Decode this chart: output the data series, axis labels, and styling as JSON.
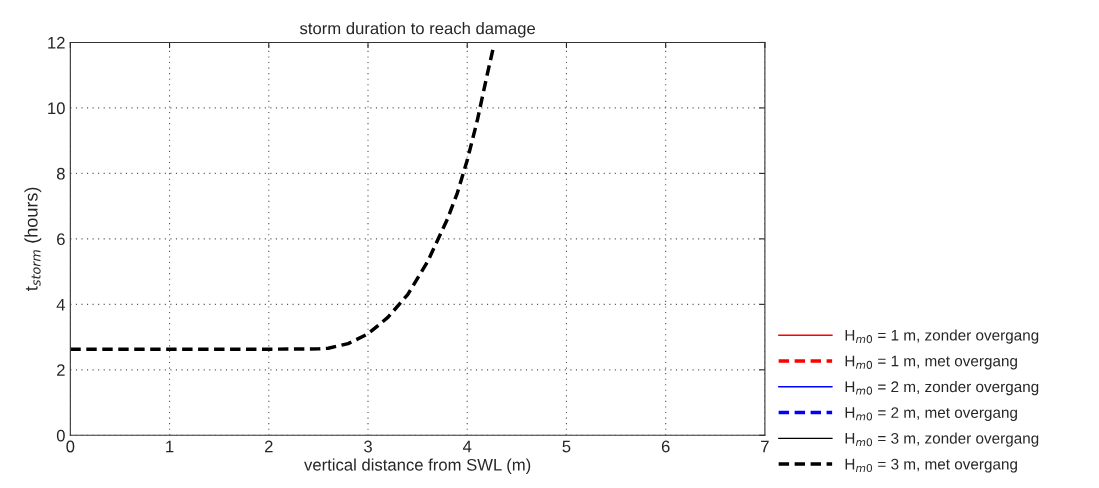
{
  "chart_data": {
    "type": "line",
    "title": "storm duration to reach damage",
    "xlabel": "vertical distance from SWL (m)",
    "ylabel": "t$_{storm}$ (hours)",
    "x": [
      0,
      0.5,
      1,
      1.5,
      2,
      2.5,
      2.6,
      2.8,
      3.0,
      3.2,
      3.4,
      3.6,
      3.8,
      3.9,
      4.0,
      4.1,
      4.2,
      4.26
    ],
    "series": [
      {
        "name": "H$_{m0}$ = 1 m, zonder overgang",
        "color": "#ff0000",
        "line_style": "solid",
        "values": [
          null,
          null,
          null,
          null,
          null,
          null,
          null,
          null,
          null,
          null,
          null,
          null,
          null,
          null,
          null,
          null,
          null,
          null
        ]
      },
      {
        "name": "H$_{m0}$ = 1 m, met overgang",
        "color": "#ff0000",
        "line_style": "dashed",
        "values": [
          null,
          null,
          null,
          null,
          null,
          null,
          null,
          null,
          null,
          null,
          null,
          null,
          null,
          null,
          null,
          null,
          null,
          null
        ]
      },
      {
        "name": "H$_{m0}$ = 2 m, zonder overgang",
        "color": "#0000ff",
        "line_style": "solid",
        "values": [
          null,
          null,
          null,
          null,
          null,
          null,
          null,
          null,
          null,
          null,
          null,
          null,
          null,
          null,
          null,
          null,
          null,
          null
        ]
      },
      {
        "name": "H$_{m0}$ = 2 m, met overgang",
        "color": "#0000ff",
        "line_style": "dashed",
        "values": [
          null,
          null,
          null,
          null,
          null,
          null,
          null,
          null,
          null,
          null,
          null,
          null,
          null,
          null,
          null,
          null,
          null,
          null
        ]
      },
      {
        "name": "H$_{m0}$ = 3 m, zonder overgang",
        "color": "#000000",
        "line_style": "solid",
        "values": [
          null,
          null,
          null,
          null,
          null,
          null,
          null,
          null,
          null,
          null,
          null,
          null,
          null,
          null,
          null,
          null,
          null,
          null
        ]
      },
      {
        "name": "H$_{m0}$ = 3 m, met overgang",
        "color": "#000000",
        "line_style": "dashed",
        "values": [
          2.63,
          2.63,
          2.63,
          2.63,
          2.63,
          2.64,
          2.66,
          2.8,
          3.1,
          3.6,
          4.3,
          5.3,
          6.6,
          7.4,
          8.4,
          9.6,
          11.0,
          11.8
        ]
      }
    ],
    "xlim": [
      0,
      7
    ],
    "ylim": [
      0,
      12
    ],
    "xticks": [
      0,
      1,
      2,
      3,
      4,
      5,
      6,
      7
    ],
    "yticks": [
      0,
      2,
      4,
      6,
      8,
      10,
      12
    ],
    "grid": true,
    "legend": "bottom right"
  }
}
